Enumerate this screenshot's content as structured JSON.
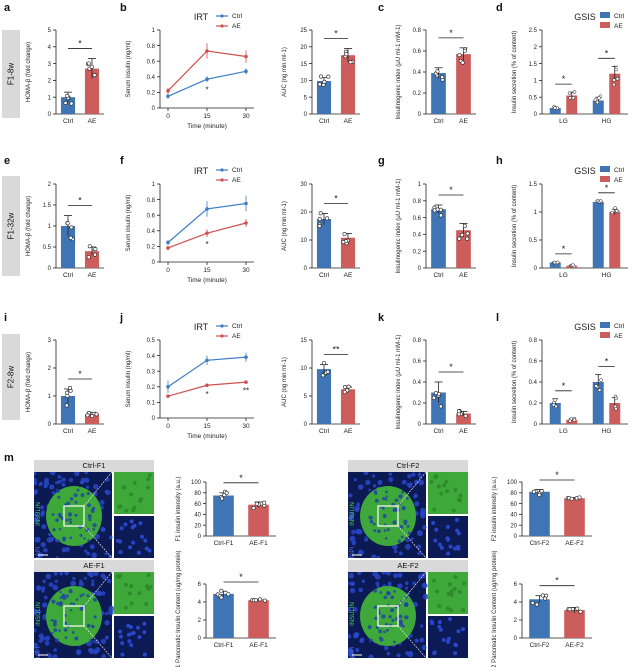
{
  "colors": {
    "ctrl": "#3f74b5",
    "ae": "#cd5c5c",
    "ctrl_line": "#3d7dc6",
    "ae_line": "#d05050"
  },
  "panels": {
    "letters": [
      "a",
      "b",
      "c",
      "d",
      "e",
      "f",
      "g",
      "h",
      "i",
      "j",
      "k",
      "l",
      "m"
    ],
    "row_labels": [
      "F1-8w",
      "F1-32w",
      "F2-8w"
    ]
  },
  "legend": {
    "ctrl": "Ctrl",
    "ae": "AE"
  },
  "titles": {
    "irt": "IRT",
    "gsis": "GSIS"
  },
  "axis_labels": {
    "homa": "HOMA-β (fold change)",
    "serum_insulin": "Serum insulin (ng/ml)",
    "time": "Time (minute)",
    "auc": "AUC (ng min ml-1)",
    "insulinogenic": "Insulinogenic index (μU ml-1 mM-1)",
    "insulin_secretion": "Insulin secretion (% of content)",
    "f1_intensity": "F1 insulin intensity (a.u.)",
    "f2_intensity": "F2 insulin intensity (a.u.)",
    "f1_content": "F1 Pancreatic Insulin Content (ug/mg protein)",
    "f2_content": "F2 Pancreatic Insulin Content (ug/mg protein)"
  },
  "micrographs": {
    "headers": [
      "Ctrl-F1",
      "AE-F1",
      "Ctrl-F2",
      "AE-F2"
    ],
    "stain_label": "INSULIN",
    "dapi_label": "DAPI"
  },
  "chart_data": [
    {
      "id": "a",
      "type": "bar",
      "categories": [
        "Ctrl",
        "AE"
      ],
      "values": [
        1.0,
        2.7
      ],
      "errors": [
        0.3,
        0.6
      ],
      "ylim": [
        0,
        5
      ],
      "yticks": [
        0,
        1,
        2,
        3,
        4,
        5
      ],
      "sig": "*",
      "ylabel": "HOMA-β (fold change)"
    },
    {
      "id": "b-line",
      "type": "line",
      "title": "IRT",
      "x": [
        0,
        15,
        30
      ],
      "xticks": [
        0,
        15,
        30
      ],
      "xlabel": "Time (minute)",
      "ylabel": "Serum insulin (ng/ml)",
      "ylim": [
        0,
        1.0
      ],
      "yticks": [
        0,
        0.2,
        0.4,
        0.6,
        0.8,
        1.0
      ],
      "series": [
        {
          "name": "Ctrl",
          "values": [
            0.15,
            0.37,
            0.47
          ],
          "errors": [
            0.03,
            0.04,
            0.04
          ]
        },
        {
          "name": "AE",
          "values": [
            0.22,
            0.73,
            0.66
          ],
          "errors": [
            0.04,
            0.1,
            0.08
          ]
        }
      ],
      "sig_labels": [
        "",
        "*",
        ""
      ]
    },
    {
      "id": "b-auc",
      "type": "bar",
      "categories": [
        "Ctrl",
        "AE"
      ],
      "values": [
        9.8,
        17.5
      ],
      "errors": [
        1.0,
        2.0
      ],
      "ylim": [
        0,
        25
      ],
      "yticks": [
        0,
        5,
        10,
        15,
        20,
        25
      ],
      "sig": "*",
      "ylabel": "AUC (ng min ml-1)"
    },
    {
      "id": "c",
      "type": "bar",
      "categories": [
        "Ctrl",
        "AE"
      ],
      "values": [
        0.39,
        0.57
      ],
      "errors": [
        0.05,
        0.06
      ],
      "ylim": [
        0,
        0.8
      ],
      "yticks": [
        0,
        0.2,
        0.4,
        0.6,
        0.8
      ],
      "sig": "*",
      "ylabel": "Insulinogenic index (μU ml-1 mM-1)"
    },
    {
      "id": "d",
      "type": "bar",
      "title": "GSIS",
      "groups": [
        "LG",
        "HG"
      ],
      "series": [
        {
          "name": "Ctrl",
          "values": [
            0.18,
            0.4
          ],
          "errors": [
            0.03,
            0.1
          ]
        },
        {
          "name": "AE",
          "values": [
            0.55,
            1.2
          ],
          "errors": [
            0.1,
            0.22
          ]
        }
      ],
      "ylim": [
        0,
        2.5
      ],
      "yticks": [
        0,
        0.5,
        1.0,
        1.5,
        2.0,
        2.5
      ],
      "sig": [
        "*",
        "*"
      ],
      "ylabel": "Insulin secretion (% of content)"
    },
    {
      "id": "e",
      "type": "bar",
      "categories": [
        "Ctrl",
        "AE"
      ],
      "values": [
        1.0,
        0.4
      ],
      "errors": [
        0.25,
        0.1
      ],
      "ylim": [
        0,
        2.0
      ],
      "yticks": [
        0,
        0.5,
        1.0,
        1.5,
        2.0
      ],
      "sig": "*",
      "ylabel": "HOMA-β (fold change)"
    },
    {
      "id": "f-line",
      "type": "line",
      "title": "IRT",
      "x": [
        0,
        15,
        30
      ],
      "xticks": [
        0,
        15,
        30
      ],
      "xlabel": "Time (minute)",
      "ylabel": "Serum insulin (ng/ml)",
      "ylim": [
        0,
        1.0
      ],
      "yticks": [
        0,
        0.2,
        0.4,
        0.6,
        0.8,
        1.0
      ],
      "series": [
        {
          "name": "Ctrl",
          "values": [
            0.25,
            0.68,
            0.75
          ],
          "errors": [
            0.03,
            0.1,
            0.1
          ]
        },
        {
          "name": "AE",
          "values": [
            0.18,
            0.37,
            0.5
          ],
          "errors": [
            0.03,
            0.05,
            0.05
          ]
        }
      ],
      "sig_labels": [
        "",
        "*",
        ""
      ]
    },
    {
      "id": "f-auc",
      "type": "bar",
      "categories": [
        "Ctrl",
        "AE"
      ],
      "values": [
        17.5,
        10.8
      ],
      "errors": [
        2.0,
        1.5
      ],
      "ylim": [
        0,
        30
      ],
      "yticks": [
        0,
        10,
        20,
        30
      ],
      "sig": "*",
      "ylabel": "AUC (ng min ml-1)"
    },
    {
      "id": "g",
      "type": "bar",
      "categories": [
        "Ctrl",
        "AE"
      ],
      "values": [
        0.7,
        0.45
      ],
      "errors": [
        0.05,
        0.08
      ],
      "ylim": [
        0,
        1.0
      ],
      "yticks": [
        0,
        0.2,
        0.4,
        0.6,
        0.8,
        1.0
      ],
      "sig": "*",
      "ylabel": "Insulinogenic index (μU ml-1 mM-1)"
    },
    {
      "id": "h",
      "type": "bar",
      "title": "GSIS",
      "groups": [
        "LG",
        "HG"
      ],
      "series": [
        {
          "name": "Ctrl",
          "values": [
            0.1,
            1.18
          ],
          "errors": [
            0.01,
            0.02
          ]
        },
        {
          "name": "AE",
          "values": [
            0.04,
            1.0
          ],
          "errors": [
            0.01,
            0.05
          ]
        }
      ],
      "ylim": [
        0,
        1.5
      ],
      "yticks": [
        0,
        0.5,
        1.0,
        1.5
      ],
      "sig": [
        "*",
        "*"
      ],
      "ylabel": "Insulin secretion (% of content)"
    },
    {
      "id": "i",
      "type": "bar",
      "categories": [
        "Ctrl",
        "AE"
      ],
      "values": [
        1.0,
        0.35
      ],
      "errors": [
        0.25,
        0.07
      ],
      "ylim": [
        0,
        3
      ],
      "yticks": [
        0,
        1,
        2,
        3
      ],
      "sig": "*",
      "ylabel": "HOMA-β (fold change)"
    },
    {
      "id": "j-line",
      "type": "line",
      "title": "IRT",
      "x": [
        0,
        15,
        30
      ],
      "xticks": [
        0,
        15,
        30
      ],
      "xlabel": "Time (minute)",
      "ylabel": "Serum insulin (ng/ml)",
      "ylim": [
        0,
        0.5
      ],
      "yticks": [
        0,
        0.1,
        0.2,
        0.3,
        0.4,
        0.5
      ],
      "series": [
        {
          "name": "Ctrl",
          "values": [
            0.2,
            0.37,
            0.39
          ],
          "errors": [
            0.04,
            0.03,
            0.03
          ]
        },
        {
          "name": "AE",
          "values": [
            0.14,
            0.21,
            0.23
          ],
          "errors": [
            0.01,
            0.01,
            0.01
          ]
        }
      ],
      "sig_labels": [
        "",
        "*",
        "**"
      ]
    },
    {
      "id": "j-auc",
      "type": "bar",
      "categories": [
        "Ctrl",
        "AE"
      ],
      "values": [
        9.8,
        6.2
      ],
      "errors": [
        0.8,
        0.4
      ],
      "ylim": [
        0,
        15
      ],
      "yticks": [
        0,
        5,
        10,
        15
      ],
      "sig": "**",
      "ylabel": "AUC (ng min ml-1)"
    },
    {
      "id": "k",
      "type": "bar",
      "categories": [
        "Ctrl",
        "AE"
      ],
      "values": [
        0.3,
        0.1
      ],
      "errors": [
        0.1,
        0.02
      ],
      "ylim": [
        0,
        0.8
      ],
      "yticks": [
        0,
        0.2,
        0.4,
        0.6,
        0.8
      ],
      "sig": "*",
      "ylabel": "Insulinogenic index (μU ml-1 mM-1)"
    },
    {
      "id": "l",
      "type": "bar",
      "title": "GSIS",
      "groups": [
        "LG",
        "HG"
      ],
      "series": [
        {
          "name": "Ctrl",
          "values": [
            0.2,
            0.4
          ],
          "errors": [
            0.04,
            0.07
          ]
        },
        {
          "name": "AE",
          "values": [
            0.04,
            0.2
          ],
          "errors": [
            0.01,
            0.05
          ]
        }
      ],
      "ylim": [
        0,
        0.8
      ],
      "yticks": [
        0,
        0.2,
        0.4,
        0.6,
        0.8
      ],
      "sig": [
        "*",
        "*"
      ],
      "ylabel": "Insulin secretion (% of content)"
    },
    {
      "id": "m1",
      "type": "bar",
      "categories": [
        "Ctrl-F1",
        "AE-F1"
      ],
      "values": [
        75,
        58
      ],
      "errors": [
        5,
        5
      ],
      "ylim": [
        0,
        100
      ],
      "yticks": [
        0,
        20,
        40,
        60,
        80,
        100
      ],
      "sig": "*",
      "ylabel": "F1 insulin intensity (a.u.)"
    },
    {
      "id": "m2",
      "type": "bar",
      "categories": [
        "Ctrl-F1",
        "AE-F1"
      ],
      "values": [
        4.9,
        4.2
      ],
      "errors": [
        0.3,
        0.1
      ],
      "ylim": [
        0,
        6
      ],
      "yticks": [
        0,
        2,
        4,
        6
      ],
      "sig": "*",
      "ylabel": "F1 Pancreatic Insulin Content (ug/mg protein)"
    },
    {
      "id": "m3",
      "type": "bar",
      "categories": [
        "Ctrl-F2",
        "AE-F2"
      ],
      "values": [
        82,
        70
      ],
      "errors": [
        4,
        1
      ],
      "ylim": [
        0,
        100
      ],
      "yticks": [
        0,
        20,
        40,
        60,
        80,
        100
      ],
      "sig": "*",
      "ylabel": "F2 insulin intensity (a.u.)"
    },
    {
      "id": "m4",
      "type": "bar",
      "categories": [
        "Ctrl-F2",
        "AE-F2"
      ],
      "values": [
        4.3,
        3.1
      ],
      "errors": [
        0.4,
        0.3
      ],
      "ylim": [
        0,
        6
      ],
      "yticks": [
        0,
        2,
        4,
        6
      ],
      "sig": "*",
      "ylabel": "F2 Pancreatic Insulin Content (ug/mg protein)"
    }
  ]
}
